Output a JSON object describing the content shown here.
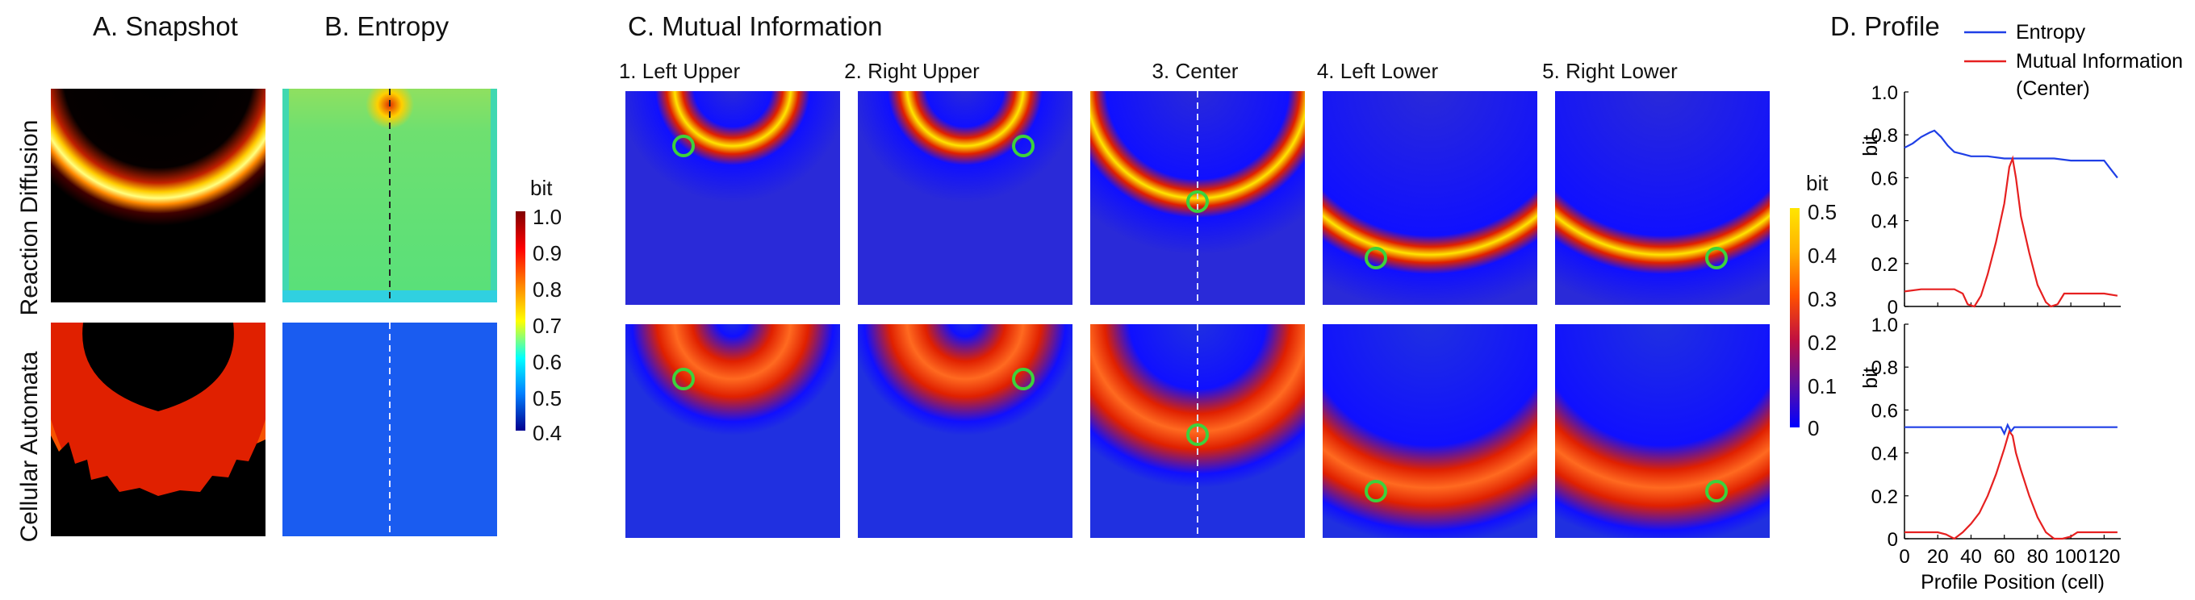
{
  "panels": {
    "a": "A. Snapshot",
    "b": "B. Entropy",
    "c": "C. Mutual Information",
    "d": "D. Profile"
  },
  "rows": [
    "Reaction Diffusion",
    "Cellular Automata"
  ],
  "mi_positions": [
    "1. Left Upper",
    "2. Right Upper",
    "3. Center",
    "4. Left Lower",
    "5. Right Lower"
  ],
  "colorbar_entropy": {
    "unit": "bit",
    "ticks": [
      "1.0",
      "0.9",
      "0.8",
      "0.7",
      "0.6",
      "0.5",
      "0.4"
    ],
    "range": [
      0.4,
      1.0
    ],
    "colormap": "jet"
  },
  "colorbar_mi": {
    "unit": "bit",
    "ticks": [
      "0.5",
      "0.4",
      "0.3",
      "0.2",
      "0.1",
      "0"
    ],
    "range": [
      0,
      0.5
    ],
    "colormap": "parula-like"
  },
  "colors": {
    "entropy_line": "#1f3fe6",
    "mi_line": "#e62020",
    "marker_circle": "#3cd23c"
  },
  "chart_data": [
    {
      "type": "line",
      "xlabel": "",
      "ylabel": "bit",
      "xlim": [
        0,
        130
      ],
      "ylim": [
        0,
        1.0
      ],
      "yticks": [
        "0",
        "0.2",
        "0.4",
        "0.6",
        "0.8",
        "1.0"
      ],
      "legend": [
        "Entropy",
        "Mutual Information",
        "(Center)"
      ],
      "legend_placement": "top",
      "series": [
        {
          "name": "Entropy",
          "x": [
            0,
            5,
            10,
            15,
            18,
            22,
            26,
            30,
            35,
            40,
            50,
            60,
            70,
            80,
            90,
            100,
            110,
            120,
            124,
            128
          ],
          "values": [
            0.74,
            0.76,
            0.79,
            0.81,
            0.82,
            0.79,
            0.75,
            0.72,
            0.71,
            0.7,
            0.7,
            0.69,
            0.69,
            0.69,
            0.69,
            0.68,
            0.68,
            0.68,
            0.64,
            0.6
          ]
        },
        {
          "name": "Mutual Information",
          "x": [
            0,
            10,
            20,
            30,
            35,
            38,
            42,
            46,
            50,
            55,
            60,
            63,
            65,
            67,
            70,
            75,
            80,
            85,
            88,
            92,
            96,
            100,
            110,
            120,
            128
          ],
          "values": [
            0.07,
            0.08,
            0.08,
            0.08,
            0.06,
            0.01,
            0.0,
            0.05,
            0.15,
            0.3,
            0.48,
            0.65,
            0.69,
            0.6,
            0.42,
            0.25,
            0.1,
            0.02,
            0.0,
            0.01,
            0.06,
            0.06,
            0.06,
            0.06,
            0.05
          ]
        }
      ]
    },
    {
      "type": "line",
      "xlabel": "Profile Position (cell)",
      "ylabel": "bit",
      "xlim": [
        0,
        130
      ],
      "ylim": [
        0,
        1.0
      ],
      "xticks": [
        "0",
        "20",
        "40",
        "60",
        "80",
        "100",
        "120"
      ],
      "yticks": [
        "0",
        "0.2",
        "0.4",
        "0.6",
        "0.8",
        "1.0"
      ],
      "series": [
        {
          "name": "Entropy",
          "x": [
            0,
            20,
            40,
            58,
            60,
            62,
            64,
            66,
            80,
            100,
            120,
            128
          ],
          "values": [
            0.52,
            0.52,
            0.52,
            0.52,
            0.49,
            0.53,
            0.5,
            0.52,
            0.52,
            0.52,
            0.52,
            0.52
          ]
        },
        {
          "name": "Mutual Information",
          "x": [
            0,
            10,
            20,
            25,
            30,
            35,
            40,
            45,
            50,
            55,
            60,
            63,
            65,
            67,
            70,
            75,
            80,
            85,
            90,
            95,
            100,
            104,
            110,
            120,
            128
          ],
          "values": [
            0.03,
            0.03,
            0.03,
            0.02,
            0.0,
            0.03,
            0.07,
            0.12,
            0.2,
            0.3,
            0.42,
            0.5,
            0.48,
            0.4,
            0.32,
            0.2,
            0.1,
            0.03,
            0.0,
            0.0,
            0.01,
            0.03,
            0.03,
            0.03,
            0.03
          ]
        }
      ]
    }
  ]
}
